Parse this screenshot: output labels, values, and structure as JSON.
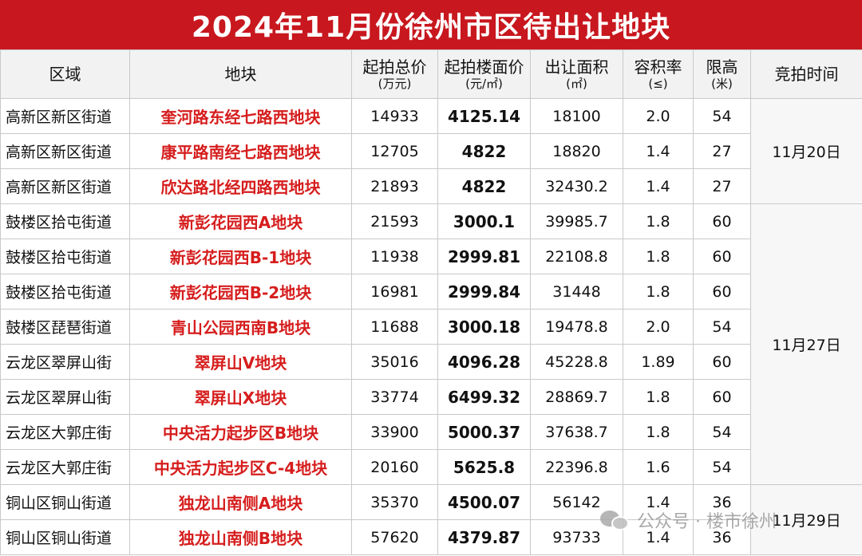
{
  "title": "2024年11月份徐州市区待出让地块",
  "headers": {
    "district": "区域",
    "plot": "地块",
    "total_price": "起拍总价",
    "total_price_unit": "(万元)",
    "floor_price": "起拍楼面价",
    "floor_price_unit": "(元/㎡)",
    "area": "出让面积",
    "area_unit": "(㎡)",
    "far": "容积率",
    "far_unit": "(≤)",
    "height": "限高",
    "height_unit": "(米)",
    "auction_time": "竞拍时间"
  },
  "rows": [
    {
      "district": "高新区新区街道",
      "plot": "奎河路东经七路西地块",
      "total_price": "14933",
      "floor_price": "4125.14",
      "area": "18100",
      "far": "2.0",
      "height": "54"
    },
    {
      "district": "高新区新区街道",
      "plot": "康平路南经七路西地块",
      "total_price": "12705",
      "floor_price": "4822",
      "area": "18820",
      "far": "1.4",
      "height": "27"
    },
    {
      "district": "高新区新区街道",
      "plot": "欣达路北经四路西地块",
      "total_price": "21893",
      "floor_price": "4822",
      "area": "32430.2",
      "far": "1.4",
      "height": "27"
    },
    {
      "district": "鼓楼区拾屯街道",
      "plot": "新彭花园西A地块",
      "total_price": "21593",
      "floor_price": "3000.1",
      "area": "39985.7",
      "far": "1.8",
      "height": "60"
    },
    {
      "district": "鼓楼区拾屯街道",
      "plot": "新彭花园西B-1地块",
      "total_price": "11938",
      "floor_price": "2999.81",
      "area": "22108.8",
      "far": "1.8",
      "height": "60"
    },
    {
      "district": "鼓楼区拾屯街道",
      "plot": "新彭花园西B-2地块",
      "total_price": "16981",
      "floor_price": "2999.84",
      "area": "31448",
      "far": "1.8",
      "height": "60"
    },
    {
      "district": "鼓楼区琵琶街道",
      "plot": "青山公园西南B地块",
      "total_price": "11688",
      "floor_price": "3000.18",
      "area": "19478.8",
      "far": "2.0",
      "height": "54"
    },
    {
      "district": "云龙区翠屏山街",
      "plot": "翠屏山V地块",
      "total_price": "35016",
      "floor_price": "4096.28",
      "area": "45228.8",
      "far": "1.89",
      "height": "60"
    },
    {
      "district": "云龙区翠屏山街",
      "plot": "翠屏山X地块",
      "total_price": "33774",
      "floor_price": "6499.32",
      "area": "28869.7",
      "far": "1.8",
      "height": "60"
    },
    {
      "district": "云龙区大郭庄街",
      "plot": "中央活力起步区B地块",
      "total_price": "33900",
      "floor_price": "5000.37",
      "area": "37638.7",
      "far": "1.8",
      "height": "54"
    },
    {
      "district": "云龙区大郭庄街",
      "plot": "中央活力起步区C-4地块",
      "total_price": "20160",
      "floor_price": "5625.8",
      "area": "22396.8",
      "far": "1.6",
      "height": "54"
    },
    {
      "district": "铜山区铜山街道",
      "plot": "独龙山南侧A地块",
      "total_price": "35370",
      "floor_price": "4500.07",
      "area": "56142",
      "far": "1.4",
      "height": "36"
    },
    {
      "district": "铜山区铜山街道",
      "plot": "独龙山南侧B地块",
      "total_price": "57620",
      "floor_price": "4379.87",
      "area": "93733",
      "far": "1.4",
      "height": "36"
    }
  ],
  "auction_dates": [
    "11月20日",
    "11月27日",
    "11月29日"
  ],
  "watermark": {
    "text": "公众号 · 楼市徐州",
    "icon": "wechat-icon"
  },
  "colors": {
    "title_bg": "#c8171e",
    "plot_text": "#d61d1d"
  }
}
